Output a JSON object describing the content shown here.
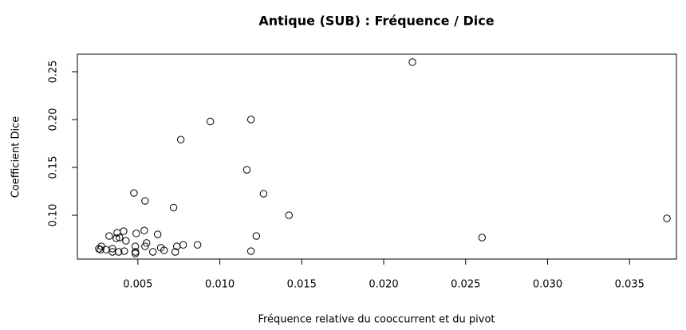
{
  "chart_data": {
    "type": "scatter",
    "title": "Antique (SUB) : Fréquence / Dice",
    "x_label": "Fréquence relative du cooccurrent et du pivot",
    "y_label": "Coefficient Dice",
    "series": [
      {
        "color": "#000000",
        "x": [
          0.02175,
          0.00942,
          0.0119,
          0.00762,
          0.01165,
          0.01267,
          0.00476,
          0.00544,
          0.00718,
          0.01422,
          0.03728,
          0.026,
          0.01223,
          0.0119,
          0.00864,
          0.00777,
          0.00738,
          0.00621,
          0.00539,
          0.0049,
          0.00553,
          0.00544,
          0.0064,
          0.0066,
          0.00728,
          0.00592,
          0.00485,
          0.00485,
          0.00485,
          0.00413,
          0.00374,
          0.00388,
          0.00427,
          0.00325,
          0.00369,
          0.00277,
          0.00272,
          0.00306,
          0.00345,
          0.00345,
          0.00383,
          0.00417,
          0.00262
        ],
        "values": [
          0.26,
          0.198,
          0.2,
          0.179,
          0.1475,
          0.1225,
          0.1233,
          0.115,
          0.108,
          0.1,
          0.0967,
          0.0767,
          0.0783,
          0.0625,
          0.069,
          0.069,
          0.0675,
          0.08,
          0.084,
          0.081,
          0.071,
          0.0675,
          0.066,
          0.0633,
          0.0617,
          0.0617,
          0.0675,
          0.0617,
          0.06,
          0.0833,
          0.0817,
          0.0767,
          0.0733,
          0.0783,
          0.0758,
          0.0675,
          0.064,
          0.064,
          0.065,
          0.0617,
          0.0617,
          0.0625,
          0.065
        ]
      }
    ],
    "xlim": [
      0.00131,
      0.03786
    ],
    "xticks": [
      0.005,
      {
        "value": 0.01,
        "label": "0.010"
      },
      0.015,
      {
        "value": 0.02,
        "label": "0.020"
      },
      0.025,
      {
        "value": 0.03,
        "label": "0.030"
      },
      0.035
    ],
    "ylim": [
      0.0542,
      0.2683
    ],
    "yticks": [
      {
        "value": 0.1,
        "label": "0.10"
      },
      0.15,
      {
        "value": 0.2,
        "label": "0.20"
      },
      0.25
    ]
  }
}
